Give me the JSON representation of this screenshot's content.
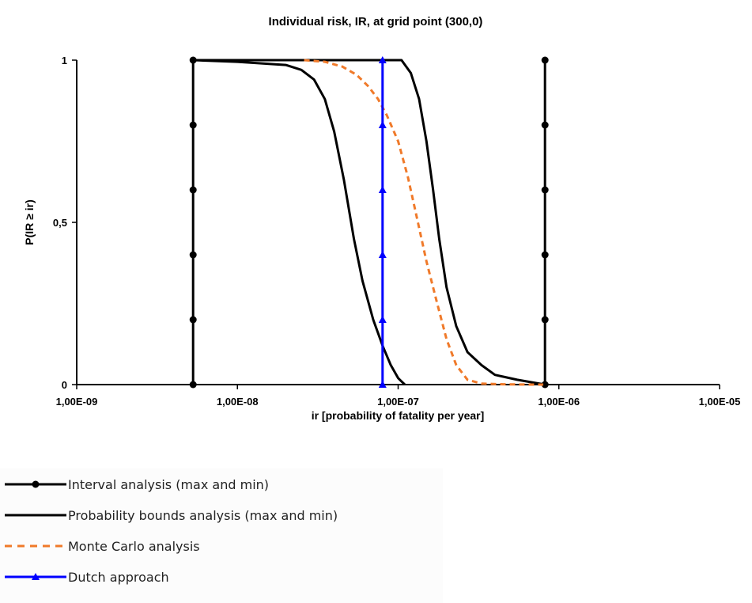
{
  "chart_data": {
    "type": "line",
    "title": "Individual risk, IR, at grid point (300,0)",
    "xlabel": "ir [probability of fatality per year]",
    "ylabel": "P(IR ≥ ir)",
    "x_scale": "log",
    "xlim": [
      1e-09,
      1e-05
    ],
    "ylim": [
      0,
      1
    ],
    "x_ticks": [
      1e-09,
      1e-08,
      1e-07,
      1e-06,
      1e-05
    ],
    "x_tick_labels": [
      "1,00E-09",
      "1,00E-08",
      "1,00E-07",
      "1,00E-06",
      "1,00E-05"
    ],
    "y_ticks": [
      0,
      0.5,
      1
    ],
    "y_tick_labels": [
      "0",
      "0,5",
      "1"
    ],
    "grid": false,
    "legend_position": "bottom-left, below plot",
    "series": [
      {
        "name": "Interval analysis (max and min)",
        "style": "solid-diamond",
        "color": "#000000",
        "lines": [
          {
            "x": [
              5.3e-09,
              5.3e-09,
              5.3e-09,
              5.3e-09,
              5.3e-09,
              5.3e-09
            ],
            "y": [
              0,
              0.2,
              0.4,
              0.6,
              0.8,
              1.0
            ]
          },
          {
            "x": [
              8.2e-07,
              8.2e-07,
              8.2e-07,
              8.2e-07,
              8.2e-07,
              8.2e-07
            ],
            "y": [
              0,
              0.2,
              0.4,
              0.6,
              0.8,
              1.0
            ]
          }
        ]
      },
      {
        "name": "Probability bounds analysis (max and min)",
        "style": "solid",
        "color": "#000000",
        "lines": [
          {
            "x": [
              5.3e-09,
              1e-08,
              2e-08,
              2.5e-08,
              3e-08,
              3.5e-08,
              4e-08,
              4.6e-08,
              5.3e-08,
              6e-08,
              7e-08,
              8e-08,
              9e-08,
              1e-07,
              1.1e-07
            ],
            "y": [
              1.0,
              0.995,
              0.985,
              0.97,
              0.94,
              0.88,
              0.78,
              0.63,
              0.45,
              0.32,
              0.2,
              0.12,
              0.06,
              0.02,
              0.0
            ]
          },
          {
            "x": [
              5.3e-09,
              1.05e-07,
              1.2e-07,
              1.35e-07,
              1.5e-07,
              1.65e-07,
              1.8e-07,
              2e-07,
              2.3e-07,
              2.7e-07,
              3.3e-07,
              4e-07,
              5.5e-07,
              8.2e-07
            ],
            "y": [
              1.0,
              1.0,
              0.96,
              0.88,
              0.75,
              0.6,
              0.45,
              0.3,
              0.18,
              0.1,
              0.06,
              0.03,
              0.015,
              0.0
            ]
          }
        ]
      },
      {
        "name": "Monte Carlo analysis",
        "style": "dashed",
        "color": "#f07a2a",
        "lines": [
          {
            "x": [
              2.6e-08,
              3.5e-08,
              4.5e-08,
              5.5e-08,
              6.5e-08,
              7.5e-08,
              8.5e-08,
              1e-07,
              1.15e-07,
              1.3e-07,
              1.5e-07,
              1.75e-07,
              2e-07,
              2.3e-07,
              2.7e-07,
              3.3e-07,
              4.5e-07,
              6.5e-07,
              8e-07
            ],
            "y": [
              1.0,
              0.995,
              0.98,
              0.955,
              0.92,
              0.88,
              0.83,
              0.75,
              0.64,
              0.52,
              0.38,
              0.25,
              0.14,
              0.06,
              0.015,
              0.003,
              0.001,
              0.0,
              0.0
            ]
          }
        ]
      },
      {
        "name": "Dutch approach",
        "style": "solid-triangle",
        "color": "#0000ff",
        "lines": [
          {
            "x": [
              8e-08,
              8e-08,
              8e-08,
              8e-08,
              8e-08,
              8e-08
            ],
            "y": [
              0,
              0.2,
              0.4,
              0.6,
              0.8,
              1.0
            ]
          }
        ]
      }
    ]
  }
}
